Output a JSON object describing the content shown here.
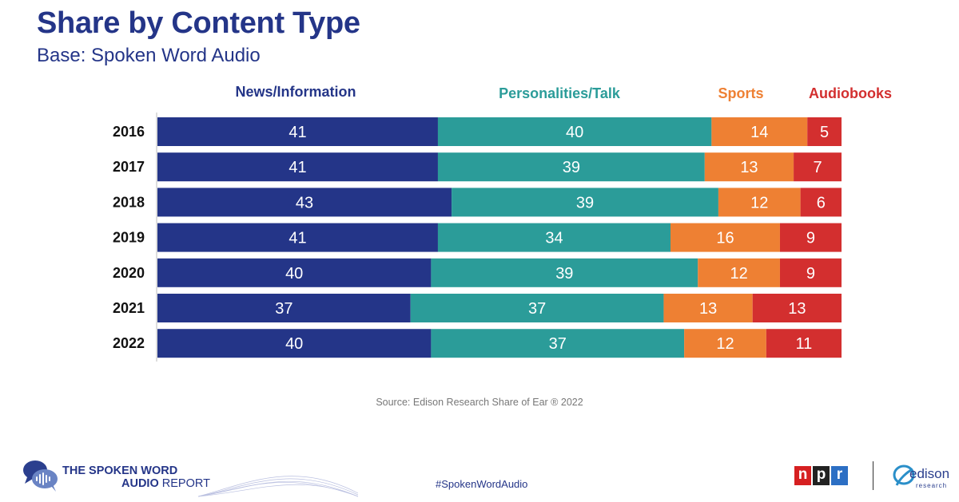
{
  "header": {
    "title": "Share by Content Type",
    "subtitle": "Base: Spoken Word Audio"
  },
  "chart_data": {
    "type": "bar",
    "orientation": "horizontal",
    "stacked": true,
    "categories": [
      "2016",
      "2017",
      "2018",
      "2019",
      "2020",
      "2021",
      "2022"
    ],
    "series": [
      {
        "name": "News/Information",
        "color": "#243588",
        "values": [
          41,
          41,
          43,
          41,
          40,
          37,
          40
        ]
      },
      {
        "name": "Personalities/Talk",
        "color": "#2b9c99",
        "values": [
          40,
          39,
          39,
          34,
          39,
          37,
          37
        ]
      },
      {
        "name": "Sports",
        "color": "#ee8033",
        "values": [
          14,
          13,
          12,
          16,
          12,
          13,
          12
        ]
      },
      {
        "name": "Audiobooks",
        "color": "#d32f2f",
        "values": [
          5,
          7,
          6,
          9,
          9,
          13,
          11
        ]
      }
    ],
    "legend_position": "top",
    "xlim": [
      0,
      100
    ],
    "grid": false
  },
  "footer": {
    "source": "Source: Edison Research Share of Ear ® 2022",
    "brand_line1": "THE SPOKEN WORD",
    "brand_line2a": "AUDIO",
    "brand_line2b": " REPORT",
    "hashtag": "#SpokenWordAudio",
    "npr_letters": [
      "n",
      "p",
      "r"
    ],
    "npr_colors": [
      "#d62021",
      "#222222",
      "#2c6fc4"
    ],
    "edison_label": "edison",
    "edison_sub": "research"
  }
}
